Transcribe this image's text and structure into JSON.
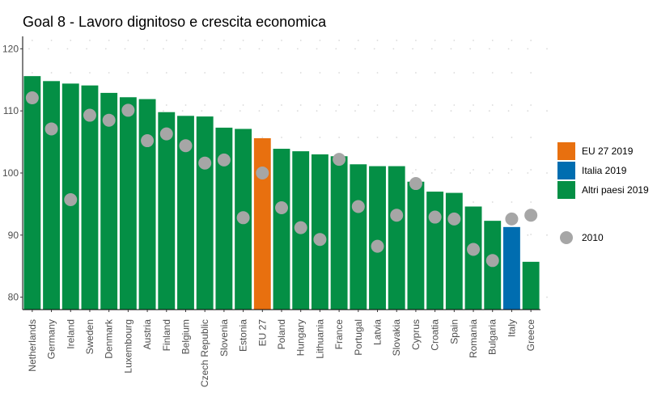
{
  "chart_data": {
    "type": "bar",
    "title": "Goal 8 - Lavoro dignitoso e crescita economica",
    "xlabel": "",
    "ylabel": "",
    "ylim": [
      78,
      122
    ],
    "yticks": [
      80,
      90,
      100,
      110,
      120
    ],
    "grid": "dotted",
    "legend_position": "right",
    "categories": [
      "Netherlands",
      "Germany",
      "Ireland",
      "Sweden",
      "Denmark",
      "Luxembourg",
      "Austria",
      "Finland",
      "Belgium",
      "Czech Republic",
      "Slovenia",
      "Estonia",
      "EU 27",
      "Poland",
      "Hungary",
      "Lithuania",
      "France",
      "Portugal",
      "Latvia",
      "Slovakia",
      "Cyprus",
      "Croatia",
      "Spain",
      "Romania",
      "Bulgaria",
      "Italy",
      "Greece"
    ],
    "series": [
      {
        "name": "2019",
        "type": "bar",
        "values": [
          115.6,
          114.8,
          114.4,
          114.1,
          112.9,
          112.2,
          111.9,
          109.8,
          109.2,
          109.1,
          107.3,
          107.1,
          105.6,
          103.9,
          103.5,
          103.0,
          102.7,
          101.4,
          101.1,
          101.1,
          98.6,
          97.0,
          96.8,
          94.6,
          92.3,
          91.3,
          85.7
        ],
        "group": [
          "Altri paesi 2019",
          "Altri paesi 2019",
          "Altri paesi 2019",
          "Altri paesi 2019",
          "Altri paesi 2019",
          "Altri paesi 2019",
          "Altri paesi 2019",
          "Altri paesi 2019",
          "Altri paesi 2019",
          "Altri paesi 2019",
          "Altri paesi 2019",
          "Altri paesi 2019",
          "EU 27 2019",
          "Altri paesi 2019",
          "Altri paesi 2019",
          "Altri paesi 2019",
          "Altri paesi 2019",
          "Altri paesi 2019",
          "Altri paesi 2019",
          "Altri paesi 2019",
          "Altri paesi 2019",
          "Altri paesi 2019",
          "Altri paesi 2019",
          "Altri paesi 2019",
          "Altri paesi 2019",
          "Italia 2019",
          "Altri paesi 2019"
        ]
      },
      {
        "name": "2010",
        "type": "point",
        "values": [
          112.1,
          107.1,
          95.7,
          109.3,
          108.5,
          110.1,
          105.2,
          106.3,
          104.4,
          101.6,
          102.1,
          92.8,
          100.0,
          94.4,
          91.2,
          89.3,
          102.2,
          94.6,
          88.2,
          93.2,
          98.3,
          92.9,
          92.6,
          87.7,
          85.9,
          92.6,
          93.2
        ]
      }
    ],
    "legend": [
      {
        "label": "EU 27 2019",
        "color": "#e8700f",
        "shape": "square"
      },
      {
        "label": "Italia 2019",
        "color": "#006db0",
        "shape": "square"
      },
      {
        "label": "Altri paesi 2019",
        "color": "#048f45",
        "shape": "square"
      },
      {
        "label": "2010",
        "color": "#a6a6a6",
        "shape": "circle"
      }
    ],
    "colors": {
      "EU 27 2019": "#e8700f",
      "Italia 2019": "#006db0",
      "Altri paesi 2019": "#048f45",
      "2010": "#a6a6a6"
    }
  }
}
